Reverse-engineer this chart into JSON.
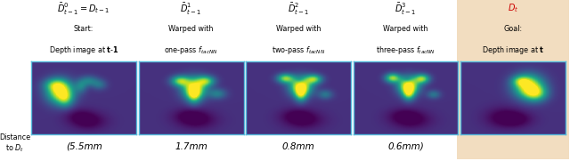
{
  "fig_width": 6.4,
  "fig_height": 1.81,
  "dpi": 100,
  "background_color": "#ffffff",
  "highlight_bg": "#f2ddc0",
  "panels": [
    {
      "title_math": "$\\bar{D}^0_{t-1} = D_{t-1}$",
      "subtitle1": "Start:",
      "subtitle2": "Depth image at $\\mathbf{t}$-$\\mathbf{1}$",
      "distance": null,
      "title_color": "#000000",
      "highlighted": false
    },
    {
      "title_math": "$\\bar{D}^1_{t-1}$",
      "subtitle1": "Warped with",
      "subtitle2": "one-pass $f_{tacNN}$",
      "distance": "1.7mm",
      "title_color": "#000000",
      "highlighted": false
    },
    {
      "title_math": "$\\bar{D}^2_{t-1}$",
      "subtitle1": "Warped with",
      "subtitle2": "two-pass $f_{tacNN}$",
      "distance": "0.8mm",
      "title_color": "#000000",
      "highlighted": false
    },
    {
      "title_math": "$\\bar{D}^3_{t-1}$",
      "subtitle1": "Warped with",
      "subtitle2": "three-pass $f_{tacNN}$",
      "distance": "0.6mm)",
      "title_color": "#000000",
      "highlighted": false
    },
    {
      "title_math": "$D_t$",
      "subtitle1": "Goal:",
      "subtitle2": "Depth image at $\\mathbf{t}$",
      "distance": null,
      "title_color": "#cc0000",
      "highlighted": true
    }
  ],
  "bottom_left_label1": "Distance",
  "bottom_left_label2": "to $D_t$",
  "first_distance": "(5.5mm"
}
